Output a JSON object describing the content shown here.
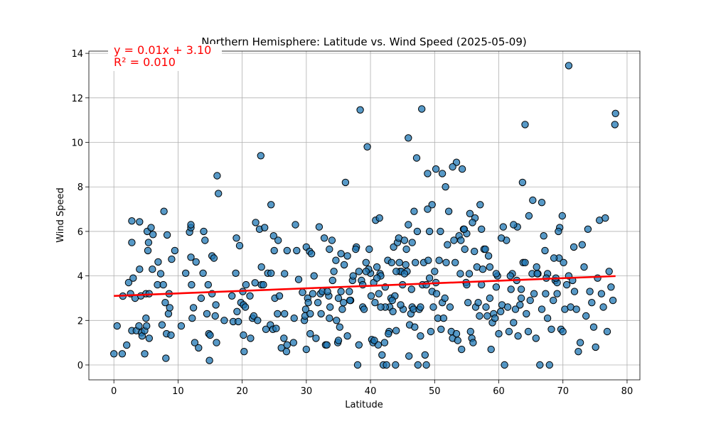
{
  "chart_data": {
    "type": "scatter",
    "title": "Northern Hemisphere: Latitude vs. Wind Speed (2025-05-09)",
    "xlabel": "Latitude",
    "ylabel": "Wind Speed",
    "xlim": [
      -3.9,
      82.0
    ],
    "ylim": [
      -0.67,
      14.1
    ],
    "xticks": [
      0,
      10,
      20,
      30,
      40,
      50,
      60,
      70,
      80
    ],
    "yticks": [
      0,
      2,
      4,
      6,
      8,
      10,
      12,
      14
    ],
    "grid": true,
    "colors": {
      "points": "#1f77b4",
      "regression": "#ff0000",
      "annotation": "#ff0000"
    },
    "regression": {
      "slope": 0.0114,
      "intercept": 3.1,
      "x_range": [
        0,
        78.2
      ],
      "equation_text": "y = 0.01x + 3.10",
      "r2_text": "R² = 0.010"
    },
    "points": [
      [
        0,
        0.5
      ],
      [
        0.5,
        1.75
      ],
      [
        1.3,
        0.5
      ],
      [
        1.4,
        3.09
      ],
      [
        2.0,
        0.89
      ],
      [
        2.3,
        3.7
      ],
      [
        2.6,
        3.2
      ],
      [
        2.8,
        6.47
      ],
      [
        2.8,
        5.5
      ],
      [
        2.8,
        1.54
      ],
      [
        3.0,
        3.9
      ],
      [
        3.3,
        3.0
      ],
      [
        3.5,
        1.54
      ],
      [
        3.9,
        1.75
      ],
      [
        4.0,
        6.43
      ],
      [
        4.0,
        4.3
      ],
      [
        4.2,
        3.1
      ],
      [
        4.3,
        1.45
      ],
      [
        4.4,
        1.3
      ],
      [
        4.8,
        0.5
      ],
      [
        4.8,
        1.54
      ],
      [
        5.0,
        2.1
      ],
      [
        5.0,
        3.2
      ],
      [
        5.1,
        1.75
      ],
      [
        5.2,
        6.0
      ],
      [
        5.3,
        5.14
      ],
      [
        5.4,
        5.5
      ],
      [
        5.5,
        3.2
      ],
      [
        5.5,
        1.2
      ],
      [
        5.8,
        6.17
      ],
      [
        6.0,
        4.3
      ],
      [
        6.1,
        5.86
      ],
      [
        6.8,
        3.6
      ],
      [
        6.9,
        4.63
      ],
      [
        7.3,
        4.1
      ],
      [
        7.5,
        1.8
      ],
      [
        7.7,
        3.6
      ],
      [
        7.8,
        6.9
      ],
      [
        8.0,
        2.8
      ],
      [
        8.1,
        0.3
      ],
      [
        8.2,
        1.4
      ],
      [
        8.3,
        5.84
      ],
      [
        8.5,
        2.3
      ],
      [
        8.6,
        3.2
      ],
      [
        8.7,
        2.57
      ],
      [
        8.9,
        1.34
      ],
      [
        9.0,
        4.75
      ],
      [
        9.5,
        5.14
      ],
      [
        10.5,
        1.75
      ],
      [
        11.2,
        4.12
      ],
      [
        11.8,
        5.97
      ],
      [
        12.0,
        6.17
      ],
      [
        12.0,
        6.3
      ],
      [
        12.0,
        4.84
      ],
      [
        12.1,
        3.6
      ],
      [
        12.2,
        2.1
      ],
      [
        12.4,
        2.57
      ],
      [
        12.6,
        1.0
      ],
      [
        12.8,
        4.63
      ],
      [
        13.2,
        0.77
      ],
      [
        13.6,
        3.0
      ],
      [
        13.9,
        4.12
      ],
      [
        14.0,
        6.0
      ],
      [
        14.2,
        5.6
      ],
      [
        14.5,
        2.3
      ],
      [
        14.7,
        3.6
      ],
      [
        14.8,
        1.4
      ],
      [
        14.9,
        0.2
      ],
      [
        15.0,
        1.34
      ],
      [
        15.3,
        3.2
      ],
      [
        15.3,
        4.9
      ],
      [
        15.6,
        4.8
      ],
      [
        15.8,
        2.2
      ],
      [
        15.9,
        2.7
      ],
      [
        16.0,
        1.0
      ],
      [
        16.1,
        8.5
      ],
      [
        16.3,
        7.7
      ],
      [
        17.2,
        2.0
      ],
      [
        18.4,
        3.1
      ],
      [
        18.6,
        1.95
      ],
      [
        19.0,
        4.12
      ],
      [
        19.1,
        5.7
      ],
      [
        19.2,
        2.4
      ],
      [
        19.4,
        1.95
      ],
      [
        19.6,
        5.36
      ],
      [
        19.8,
        2.8
      ],
      [
        20.1,
        3.3
      ],
      [
        20.2,
        2.7
      ],
      [
        20.2,
        1.34
      ],
      [
        20.3,
        0.6
      ],
      [
        20.5,
        2.6
      ],
      [
        20.6,
        3.6
      ],
      [
        21.2,
        3.1
      ],
      [
        21.3,
        1.2
      ],
      [
        21.6,
        2.1
      ],
      [
        21.8,
        2.2
      ],
      [
        22.0,
        3.69
      ],
      [
        22.1,
        6.4
      ],
      [
        22.4,
        2.0
      ],
      [
        22.7,
        6.1
      ],
      [
        22.9,
        9.4
      ],
      [
        23.0,
        3.6
      ],
      [
        23.0,
        4.4
      ],
      [
        23.3,
        3.6
      ],
      [
        23.5,
        6.17
      ],
      [
        23.7,
        1.6
      ],
      [
        24.0,
        4.12
      ],
      [
        24.4,
        1.8
      ],
      [
        24.5,
        4.12
      ],
      [
        24.5,
        7.2
      ],
      [
        24.8,
        1.6
      ],
      [
        24.9,
        5.8
      ],
      [
        25.0,
        5.14
      ],
      [
        25.1,
        3.0
      ],
      [
        25.3,
        1.64
      ],
      [
        25.5,
        2.3
      ],
      [
        25.6,
        5.6
      ],
      [
        25.8,
        3.1
      ],
      [
        26.1,
        0.77
      ],
      [
        26.5,
        1.2
      ],
      [
        26.6,
        2.3
      ],
      [
        26.6,
        4.1
      ],
      [
        26.9,
        0.6
      ],
      [
        27.0,
        5.14
      ],
      [
        27.0,
        0.9
      ],
      [
        28.0,
        1.0
      ],
      [
        28.1,
        2.1
      ],
      [
        28.3,
        6.3
      ],
      [
        28.5,
        5.14
      ],
      [
        28.8,
        3.84
      ],
      [
        29.4,
        3.26
      ],
      [
        29.7,
        2.0
      ],
      [
        29.8,
        2.2
      ],
      [
        29.9,
        2.5
      ],
      [
        30.0,
        5.3
      ],
      [
        30.0,
        0.7
      ],
      [
        30.2,
        3.0
      ],
      [
        30.3,
        2.8
      ],
      [
        30.5,
        5.1
      ],
      [
        30.6,
        2.3
      ],
      [
        30.6,
        1.4
      ],
      [
        30.8,
        5.0
      ],
      [
        31.0,
        3.2
      ],
      [
        31.2,
        4.0
      ],
      [
        31.5,
        1.2
      ],
      [
        31.8,
        2.8
      ],
      [
        32.0,
        6.2
      ],
      [
        32.2,
        3.2
      ],
      [
        32.3,
        2.3
      ],
      [
        32.5,
        3.3
      ],
      [
        32.8,
        5.7
      ],
      [
        33.0,
        0.9
      ],
      [
        33.2,
        0.9
      ],
      [
        33.5,
        3.1
      ],
      [
        33.6,
        5.2
      ],
      [
        33.7,
        2.6
      ],
      [
        34.0,
        5.6
      ],
      [
        34.3,
        4.2
      ],
      [
        34.7,
        2.0
      ],
      [
        34.9,
        1.0
      ],
      [
        35.0,
        3.0
      ],
      [
        35.2,
        1.7
      ],
      [
        35.4,
        5.0
      ],
      [
        35.6,
        2.5
      ],
      [
        35.8,
        2.8
      ],
      [
        36.1,
        8.2
      ],
      [
        36.4,
        4.9
      ],
      [
        36.7,
        3.3
      ],
      [
        36.9,
        2.9
      ],
      [
        37.2,
        3.8
      ],
      [
        37.8,
        5.3
      ],
      [
        38.0,
        0.0
      ],
      [
        38.2,
        4.2
      ],
      [
        38.4,
        11.46
      ],
      [
        38.6,
        3.8
      ],
      [
        38.8,
        2.6
      ],
      [
        39.0,
        2.5
      ],
      [
        39.3,
        4.6
      ],
      [
        39.5,
        9.8
      ],
      [
        39.8,
        5.2
      ],
      [
        40.0,
        4.12
      ],
      [
        40.2,
        1.14
      ],
      [
        40.4,
        1.0
      ],
      [
        40.5,
        3.7
      ],
      [
        40.7,
        2.8
      ],
      [
        40.8,
        6.5
      ],
      [
        41.0,
        4.4
      ],
      [
        41.2,
        0.9
      ],
      [
        41.3,
        3.2
      ],
      [
        41.4,
        6.6
      ],
      [
        41.5,
        4.1
      ],
      [
        41.6,
        4.0
      ],
      [
        41.8,
        0.45
      ],
      [
        42.0,
        0.0
      ],
      [
        42.2,
        1.0
      ],
      [
        42.3,
        3.5
      ],
      [
        42.5,
        0.0
      ],
      [
        42.7,
        4.7
      ],
      [
        42.9,
        1.5
      ],
      [
        43.0,
        2.6
      ],
      [
        43.2,
        3.0
      ],
      [
        43.3,
        4.6
      ],
      [
        43.5,
        2.4
      ],
      [
        43.6,
        5.3
      ],
      [
        43.8,
        3.1
      ],
      [
        43.9,
        0.0
      ],
      [
        44.0,
        1.54
      ],
      [
        44.2,
        5.5
      ],
      [
        44.4,
        5.7
      ],
      [
        44.5,
        4.6
      ],
      [
        44.6,
        4.2
      ],
      [
        44.8,
        4.2
      ],
      [
        45.0,
        3.6
      ],
      [
        45.1,
        2.5
      ],
      [
        45.3,
        5.6
      ],
      [
        45.5,
        4.5
      ],
      [
        45.7,
        4.2
      ],
      [
        45.9,
        10.2
      ],
      [
        46.0,
        0.4
      ],
      [
        46.1,
        1.8
      ],
      [
        46.3,
        2.3
      ],
      [
        46.4,
        3.4
      ],
      [
        46.5,
        2.6
      ],
      [
        46.7,
        2.5
      ],
      [
        46.9,
        1.7
      ],
      [
        47.0,
        4.6
      ],
      [
        47.2,
        9.3
      ],
      [
        47.4,
        0.0
      ],
      [
        47.6,
        2.5
      ],
      [
        47.8,
        2.6
      ],
      [
        48.0,
        11.5
      ],
      [
        48.1,
        3.6
      ],
      [
        48.3,
        4.6
      ],
      [
        48.5,
        0.45
      ],
      [
        48.7,
        0.0
      ],
      [
        48.9,
        8.6
      ],
      [
        49.0,
        4.7
      ],
      [
        49.2,
        3.9
      ],
      [
        49.4,
        1.5
      ],
      [
        49.6,
        3.3
      ],
      [
        49.8,
        2.6
      ],
      [
        50.0,
        4.2
      ],
      [
        50.2,
        3.7
      ],
      [
        50.3,
        3.2
      ],
      [
        50.5,
        2.1
      ],
      [
        50.7,
        4.7
      ],
      [
        50.9,
        6.0
      ],
      [
        51.0,
        1.6
      ],
      [
        51.2,
        2.8
      ],
      [
        51.4,
        2.1
      ],
      [
        51.6,
        3.0
      ],
      [
        51.8,
        4.6
      ],
      [
        52.0,
        5.4
      ],
      [
        52.2,
        6.9
      ],
      [
        52.4,
        2.6
      ],
      [
        52.6,
        1.5
      ],
      [
        52.8,
        1.2
      ],
      [
        53.0,
        5.6
      ],
      [
        53.2,
        4.6
      ],
      [
        53.4,
        1.4
      ],
      [
        53.6,
        1.1
      ],
      [
        53.8,
        5.8
      ],
      [
        54.0,
        4.1
      ],
      [
        54.2,
        0.7
      ],
      [
        54.3,
        8.8
      ],
      [
        54.5,
        6.1
      ],
      [
        54.7,
        5.2
      ],
      [
        54.9,
        3.7
      ],
      [
        55.0,
        3.6
      ],
      [
        55.2,
        2.8
      ],
      [
        55.4,
        4.1
      ],
      [
        55.6,
        1.5
      ],
      [
        55.8,
        1.2
      ],
      [
        56.0,
        1.0
      ],
      [
        56.2,
        5.1
      ],
      [
        56.4,
        2.6
      ],
      [
        56.6,
        4.4
      ],
      [
        56.8,
        2.8
      ],
      [
        57.0,
        2.2
      ],
      [
        57.1,
        7.2
      ],
      [
        57.3,
        3.6
      ],
      [
        57.5,
        4.3
      ],
      [
        57.7,
        5.2
      ],
      [
        57.9,
        5.2
      ],
      [
        58.0,
        2.6
      ],
      [
        58.2,
        2.2
      ],
      [
        58.4,
        4.9
      ],
      [
        58.6,
        3.0
      ],
      [
        58.8,
        0.7
      ],
      [
        59.0,
        1.9
      ],
      [
        59.2,
        2.3
      ],
      [
        59.4,
        2.1
      ],
      [
        59.6,
        3.5
      ],
      [
        59.8,
        4.0
      ],
      [
        60.0,
        1.4
      ],
      [
        60.3,
        2.4
      ],
      [
        60.5,
        2.7
      ],
      [
        60.7,
        6.2
      ],
      [
        60.9,
        0.0
      ],
      [
        61.2,
        5.6
      ],
      [
        61.4,
        2.6
      ],
      [
        61.6,
        1.5
      ],
      [
        61.9,
        3.4
      ],
      [
        62.1,
        4.1
      ],
      [
        62.3,
        1.9
      ],
      [
        62.6,
        2.5
      ],
      [
        62.8,
        3.8
      ],
      [
        63.0,
        1.3
      ],
      [
        63.3,
        2.7
      ],
      [
        63.5,
        3.0
      ],
      [
        63.8,
        4.6
      ],
      [
        64.1,
        4.6
      ],
      [
        64.3,
        2.3
      ],
      [
        64.6,
        1.5
      ],
      [
        64.9,
        2.9
      ],
      [
        65.2,
        4.1
      ],
      [
        65.5,
        3.2
      ],
      [
        65.8,
        1.2
      ],
      [
        66.1,
        4.1
      ],
      [
        66.4,
        0.0
      ],
      [
        66.7,
        2.5
      ],
      [
        67.0,
        5.8
      ],
      [
        67.3,
        3.2
      ],
      [
        67.6,
        2.1
      ],
      [
        67.9,
        0.0
      ],
      [
        68.2,
        1.6
      ],
      [
        68.5,
        2.9
      ],
      [
        68.8,
        3.8
      ],
      [
        69.1,
        3.2
      ],
      [
        69.4,
        4.8
      ],
      [
        69.7,
        1.6
      ],
      [
        70.0,
        1.5
      ],
      [
        70.3,
        2.5
      ],
      [
        70.6,
        3.6
      ],
      [
        70.9,
        4.0
      ],
      [
        71.2,
        2.6
      ],
      [
        71.5,
        3.8
      ],
      [
        71.8,
        3.3
      ],
      [
        72.1,
        2.5
      ],
      [
        72.4,
        0.6
      ],
      [
        72.7,
        1.0
      ],
      [
        73.0,
        5.4
      ],
      [
        73.3,
        4.4
      ],
      [
        73.6,
        2.2
      ],
      [
        73.9,
        6.1
      ],
      [
        74.2,
        3.3
      ],
      [
        74.5,
        2.8
      ],
      [
        74.8,
        1.7
      ],
      [
        75.1,
        0.8
      ],
      [
        75.4,
        3.9
      ],
      [
        75.7,
        6.5
      ],
      [
        76.0,
        3.2
      ],
      [
        76.3,
        2.6
      ],
      [
        76.6,
        6.6
      ],
      [
        76.9,
        1.5
      ],
      [
        77.2,
        4.2
      ],
      [
        77.5,
        3.5
      ],
      [
        77.8,
        2.9
      ],
      [
        78.1,
        10.8
      ],
      [
        78.2,
        11.3
      ],
      [
        70.9,
        13.45
      ],
      [
        71.7,
        5.3
      ],
      [
        70.1,
        4.6
      ],
      [
        69.9,
        6.7
      ],
      [
        69.5,
        6.17
      ],
      [
        69.3,
        6.0
      ],
      [
        69.1,
        3.7
      ],
      [
        68.9,
        3.9
      ],
      [
        68.6,
        4.8
      ],
      [
        67.6,
        4.1
      ],
      [
        67.4,
        3.9
      ],
      [
        67.2,
        5.14
      ],
      [
        66.7,
        7.3
      ],
      [
        66.0,
        4.1
      ],
      [
        65.9,
        4.4
      ],
      [
        65.3,
        7.4
      ],
      [
        64.7,
        6.7
      ],
      [
        64.1,
        10.8
      ],
      [
        63.7,
        8.2
      ],
      [
        63.5,
        3.4
      ],
      [
        62.9,
        6.2
      ],
      [
        62.3,
        6.3
      ],
      [
        61.8,
        4.0
      ],
      [
        60.4,
        5.7
      ],
      [
        59.6,
        4.1
      ],
      [
        58.6,
        4.4
      ],
      [
        57.3,
        6.1
      ],
      [
        56.3,
        6.6
      ],
      [
        55.9,
        6.4
      ],
      [
        55.5,
        6.8
      ],
      [
        55.0,
        5.9
      ],
      [
        54.6,
        6.1
      ],
      [
        54.1,
        5.6
      ],
      [
        53.4,
        9.1
      ],
      [
        52.8,
        8.9
      ],
      [
        51.7,
        8.0
      ],
      [
        51.2,
        8.6
      ],
      [
        50.2,
        8.8
      ],
      [
        49.6,
        7.2
      ],
      [
        49.2,
        6.0
      ],
      [
        48.9,
        7.0
      ],
      [
        48.7,
        3.6
      ],
      [
        47.8,
        1.3
      ],
      [
        47.3,
        6.0
      ],
      [
        46.8,
        6.9
      ],
      [
        46.5,
        5.5
      ],
      [
        45.9,
        6.3
      ],
      [
        45.6,
        5.2
      ],
      [
        45.3,
        4.1
      ],
      [
        44.7,
        2.7
      ],
      [
        44.0,
        4.2
      ],
      [
        43.4,
        2.9
      ],
      [
        42.8,
        1.4
      ],
      [
        42.3,
        2.6
      ],
      [
        41.6,
        2.6
      ],
      [
        41.0,
        3.9
      ],
      [
        40.6,
        1.1
      ],
      [
        40.1,
        3.1
      ],
      [
        39.7,
        4.3
      ],
      [
        39.3,
        4.2
      ],
      [
        38.8,
        3.6
      ],
      [
        38.2,
        0.9
      ],
      [
        37.7,
        5.2
      ],
      [
        37.3,
        4.0
      ],
      [
        36.8,
        2.9
      ],
      [
        36.4,
        1.3
      ],
      [
        35.9,
        4.5
      ],
      [
        35.4,
        3.3
      ],
      [
        35.0,
        1.1
      ],
      [
        34.6,
        4.7
      ],
      [
        34.1,
        3.8
      ],
      [
        33.6,
        2.1
      ],
      [
        33.3,
        3.3
      ]
    ]
  }
}
